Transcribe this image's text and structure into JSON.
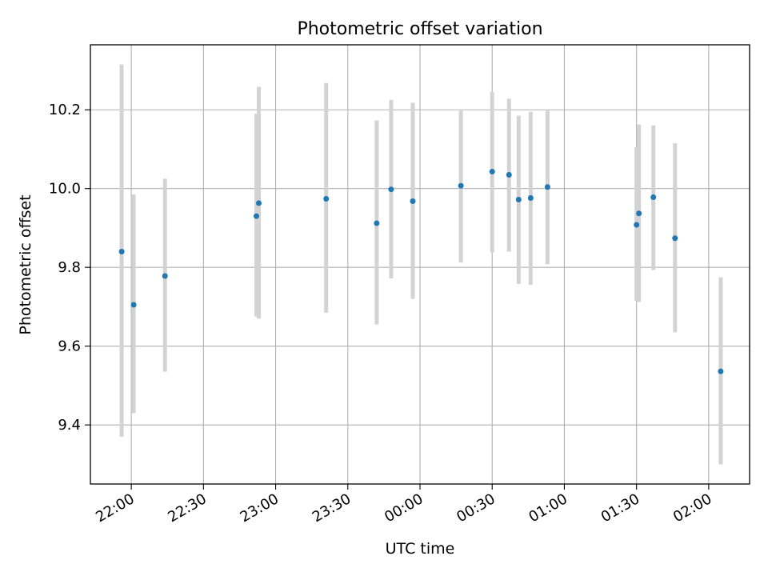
{
  "chart_data": {
    "type": "scatter",
    "title": "Photometric offset variation",
    "xlabel": "UTC time",
    "ylabel": "Photometric offset",
    "x_ticks": [
      "22:00",
      "22:30",
      "23:00",
      "23:30",
      "00:00",
      "00:30",
      "01:00",
      "01:30",
      "02:00"
    ],
    "y_ticks": [
      "9.4",
      "9.6",
      "9.8",
      "10.0",
      "10.2"
    ],
    "xlim": [
      "21:43",
      "02:17"
    ],
    "ylim": [
      9.25,
      10.365
    ],
    "grid": true,
    "marker_color": "#1f77b4",
    "errorbar_color": "#d3d3d3",
    "points": [
      {
        "t": "21:56",
        "y": 9.84,
        "lo": 9.37,
        "hi": 10.315
      },
      {
        "t": "22:01",
        "y": 9.705,
        "lo": 9.43,
        "hi": 9.985
      },
      {
        "t": "22:14",
        "y": 9.778,
        "lo": 9.535,
        "hi": 10.025
      },
      {
        "t": "22:52",
        "y": 9.93,
        "lo": 9.675,
        "hi": 10.19
      },
      {
        "t": "22:53",
        "y": 9.963,
        "lo": 9.67,
        "hi": 10.258
      },
      {
        "t": "23:21",
        "y": 9.974,
        "lo": 9.685,
        "hi": 10.268
      },
      {
        "t": "23:42",
        "y": 9.912,
        "lo": 9.655,
        "hi": 10.173
      },
      {
        "t": "23:48",
        "y": 9.998,
        "lo": 9.772,
        "hi": 10.225
      },
      {
        "t": "23:57",
        "y": 9.968,
        "lo": 9.72,
        "hi": 10.218
      },
      {
        "t": "00:17",
        "y": 10.007,
        "lo": 9.812,
        "hi": 10.198
      },
      {
        "t": "00:30",
        "y": 10.043,
        "lo": 9.838,
        "hi": 10.245
      },
      {
        "t": "00:37",
        "y": 10.035,
        "lo": 9.84,
        "hi": 10.228
      },
      {
        "t": "00:41",
        "y": 9.972,
        "lo": 9.758,
        "hi": 10.185
      },
      {
        "t": "00:46",
        "y": 9.976,
        "lo": 9.756,
        "hi": 10.195
      },
      {
        "t": "00:53",
        "y": 10.004,
        "lo": 9.808,
        "hi": 10.198
      },
      {
        "t": "01:30",
        "y": 9.908,
        "lo": 9.715,
        "hi": 10.105
      },
      {
        "t": "01:31",
        "y": 9.937,
        "lo": 9.712,
        "hi": 10.163
      },
      {
        "t": "01:37",
        "y": 9.978,
        "lo": 9.793,
        "hi": 10.16
      },
      {
        "t": "01:46",
        "y": 9.874,
        "lo": 9.635,
        "hi": 10.115
      },
      {
        "t": "02:05",
        "y": 9.536,
        "lo": 9.3,
        "hi": 9.775
      }
    ]
  }
}
